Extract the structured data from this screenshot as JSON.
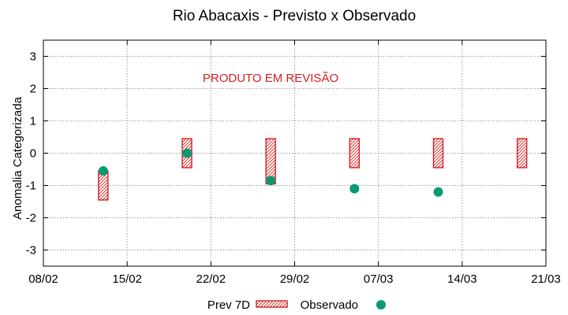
{
  "chart_data": {
    "type": "scatter",
    "title": "Rio Abacaxis - Previsto x Observado",
    "annotation": "PRODUTO EM REVISÃO",
    "xlabel": "",
    "ylabel": "Anomalia Categorizada",
    "x_ticks": [
      "08/02",
      "15/02",
      "22/02",
      "29/02",
      "07/03",
      "14/03",
      "21/03"
    ],
    "ylim": [
      -3.5,
      3.5
    ],
    "y_ticks": [
      -3,
      -2,
      -1,
      0,
      1,
      2,
      3
    ],
    "grid": true,
    "legend_position": "bottom",
    "series": [
      {
        "name": "Prev 7D",
        "kind": "range-box",
        "color": "#d42020",
        "points": [
          {
            "x": "13/02",
            "low": -1.45,
            "high": -0.55
          },
          {
            "x": "20/02",
            "low": -0.45,
            "high": 0.45
          },
          {
            "x": "27/02",
            "low": -0.95,
            "high": 0.45
          },
          {
            "x": "05/03",
            "low": -0.45,
            "high": 0.45
          },
          {
            "x": "12/03",
            "low": -0.45,
            "high": 0.45
          },
          {
            "x": "19/03",
            "low": -0.45,
            "high": 0.45
          }
        ]
      },
      {
        "name": "Observado",
        "kind": "point",
        "color": "#0a9a72",
        "points": [
          {
            "x": "13/02",
            "y": -0.55
          },
          {
            "x": "20/02",
            "y": 0.0
          },
          {
            "x": "27/02",
            "y": -0.85
          },
          {
            "x": "05/03",
            "y": -1.1
          },
          {
            "x": "12/03",
            "y": -1.2
          }
        ]
      }
    ]
  }
}
